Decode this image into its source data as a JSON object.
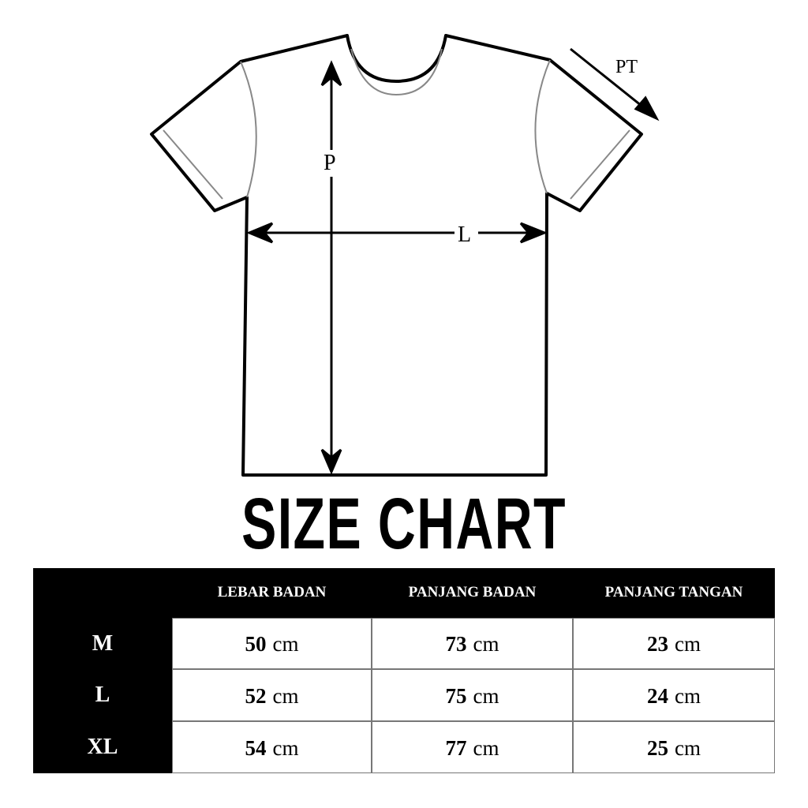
{
  "diagram": {
    "labels": {
      "length": "P",
      "width": "L",
      "sleeve": "PT"
    }
  },
  "title": "SIZE CHART",
  "table": {
    "headers": [
      "LEBAR BADAN",
      "PANJANG BADAN",
      "PANJANG TANGAN"
    ],
    "unit": "cm",
    "rows": [
      {
        "size": "M",
        "values": [
          "50",
          "73",
          "23"
        ]
      },
      {
        "size": "L",
        "values": [
          "52",
          "75",
          "24"
        ]
      },
      {
        "size": "XL",
        "values": [
          "54",
          "77",
          "25"
        ]
      }
    ]
  },
  "colors": {
    "background": "#ffffff",
    "ink": "#000000",
    "seam": "#888888"
  }
}
